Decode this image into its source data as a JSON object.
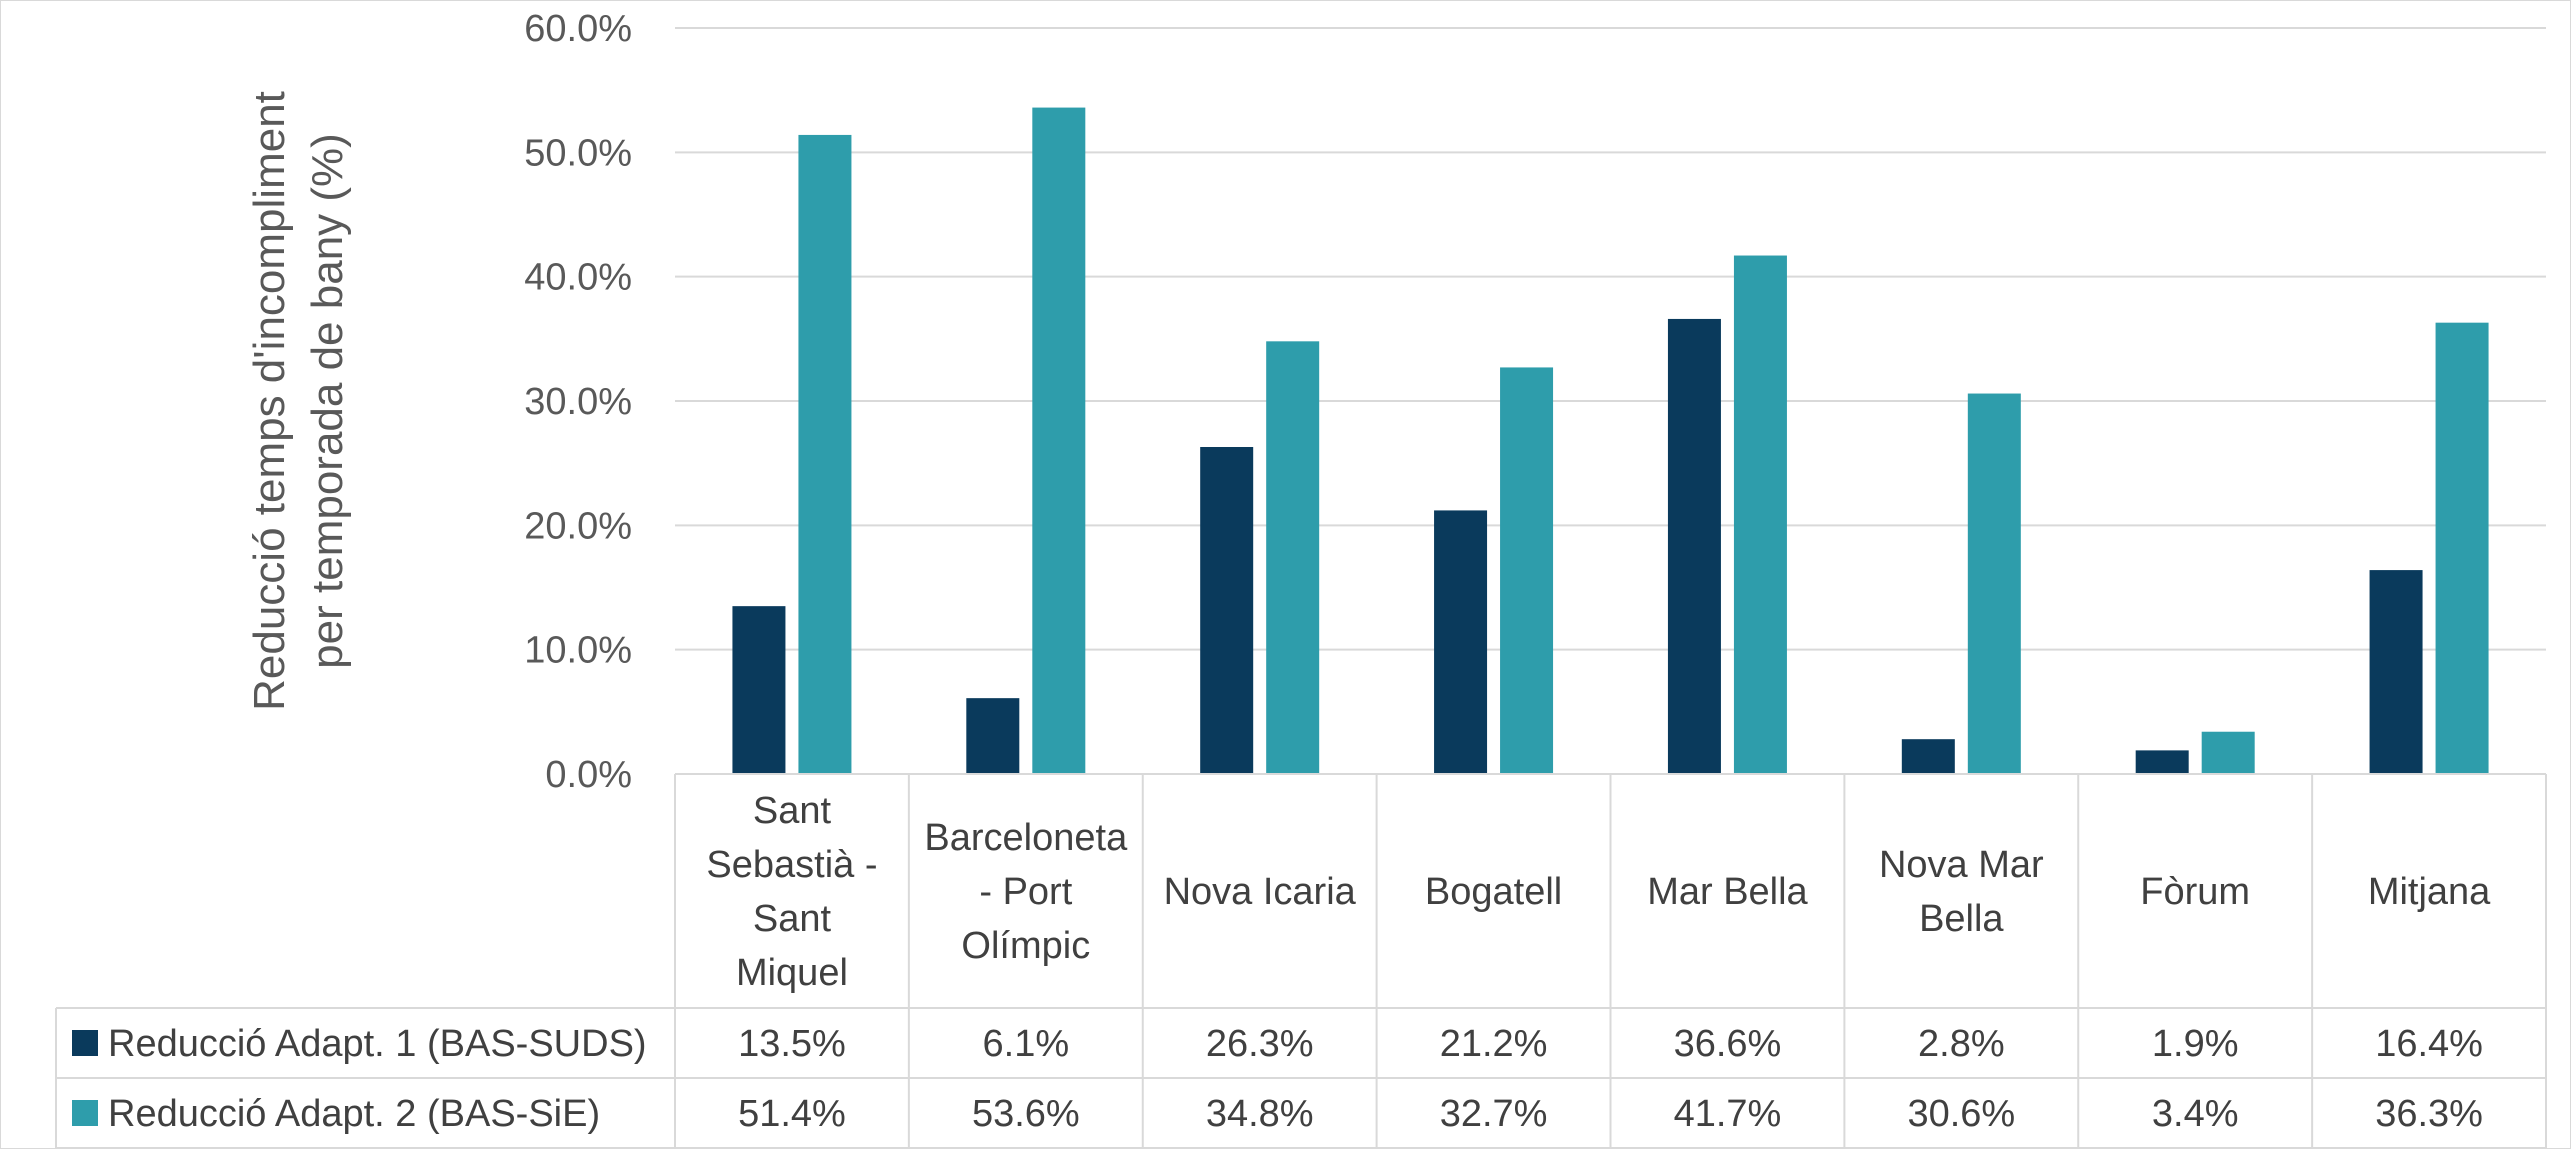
{
  "chart_data": {
    "type": "bar",
    "title": "",
    "ylabel": "Reducció temps d'incompliment per temporada de bany (%)",
    "ylabel_lines": [
      "Reducció temps d'incompliment",
      "per temporada de bany (%)"
    ],
    "xlabel": "",
    "ylim": [
      0,
      60
    ],
    "yticks": [
      "0.0%",
      "10.0%",
      "20.0%",
      "30.0%",
      "40.0%",
      "50.0%",
      "60.0%"
    ],
    "grid": true,
    "legend": "data-table",
    "categories": [
      "Sant Sebastià - Sant Miquel",
      "Barceloneta - Port Olímpic",
      "Nova Icaria",
      "Bogatell",
      "Mar Bella",
      "Nova Mar Bella",
      "Fòrum",
      "Mitjana"
    ],
    "category_lines": [
      [
        "Sant",
        "Sebastià -",
        "Sant",
        "Miquel"
      ],
      [
        "Barceloneta",
        "- Port",
        "Olímpic"
      ],
      [
        "Nova Icaria"
      ],
      [
        "Bogatell"
      ],
      [
        "Mar Bella"
      ],
      [
        "Nova Mar",
        "Bella"
      ],
      [
        "Fòrum"
      ],
      [
        "Mitjana"
      ]
    ],
    "series": [
      {
        "name": "Reducció Adapt. 1 (BAS-SUDS)",
        "color": "#0a3a5c",
        "values": [
          13.5,
          6.1,
          26.3,
          21.2,
          36.6,
          2.8,
          1.9,
          16.4
        ],
        "labels": [
          "13.5%",
          "6.1%",
          "26.3%",
          "21.2%",
          "36.6%",
          "2.8%",
          "1.9%",
          "16.4%"
        ]
      },
      {
        "name": "Reducció Adapt. 2 (BAS-SiE)",
        "color": "#2e9dab",
        "values": [
          51.4,
          53.6,
          34.8,
          32.7,
          41.7,
          30.6,
          3.4,
          36.3
        ],
        "labels": [
          "51.4%",
          "53.6%",
          "34.8%",
          "32.7%",
          "41.7%",
          "30.6%",
          "3.4%",
          "36.3%"
        ]
      }
    ]
  }
}
